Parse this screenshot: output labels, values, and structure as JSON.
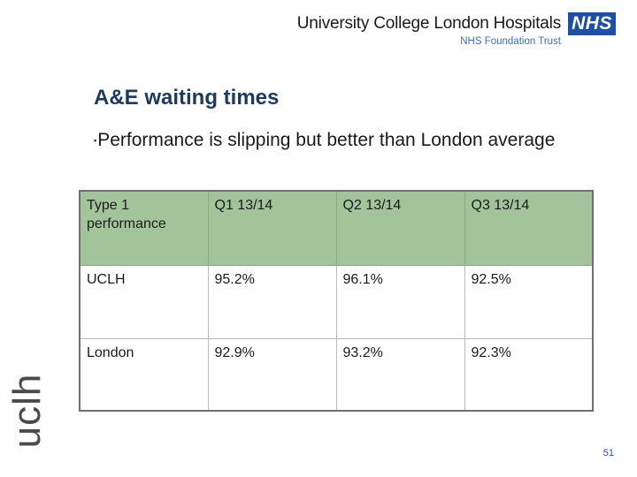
{
  "header": {
    "org_name": "University College London Hospitals",
    "trust_name": "NHS Foundation Trust",
    "nhs_logo": "NHS"
  },
  "slide": {
    "title": "A&E waiting times",
    "bullet_marker": "▪",
    "bullet_text": "Performance is slipping but better than London average",
    "side_mark": "uclh",
    "page_number": "51"
  },
  "table": {
    "headers": [
      "Type 1 performance",
      "Q1 13/14",
      "Q2 13/14",
      "Q3 13/14"
    ],
    "rows": [
      [
        "UCLH",
        "95.2%",
        "96.1%",
        "92.5%"
      ],
      [
        "London",
        "92.9%",
        "93.2%",
        "92.3%"
      ]
    ]
  },
  "colors": {
    "header_fill": "#a3c49b",
    "nhs_blue": "#1f4ea3",
    "title": "#1f3a5a"
  }
}
